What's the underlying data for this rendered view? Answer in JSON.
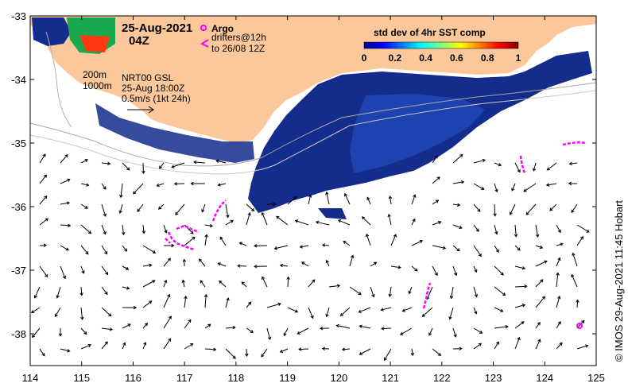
{
  "map": {
    "datetime": "25-Aug-2021",
    "time": "04Z",
    "product": "NRT00 GSL",
    "product_time": "25-Aug 18:00Z",
    "vector_scale": "0.5m/s (1kt 24h)",
    "contour_200": "200m",
    "contour_1000": "1000m",
    "credit": "©  IMOS 29-Aug-2021 11:45 Hobart"
  },
  "legend": {
    "argo": "Argo",
    "drifters_line1": "drifters@12h",
    "drifters_line2": "to 26/08 12Z"
  },
  "colorbar": {
    "title": "std dev of 4hr SST comp",
    "ticks": [
      "0",
      "0.2",
      "0.4",
      "0.6",
      "0.8",
      "1"
    ],
    "colors": [
      "#00008f",
      "#0000ff",
      "#0080ff",
      "#00ffff",
      "#80ff80",
      "#ffff00",
      "#ff8000",
      "#ff0000",
      "#800000"
    ]
  },
  "axes": {
    "x_ticks": [
      "114",
      "115",
      "116",
      "117",
      "118",
      "119",
      "120",
      "121",
      "122",
      "123",
      "124",
      "125"
    ],
    "y_ticks": [
      "-33",
      "-34",
      "-35",
      "-36",
      "-37",
      "-38"
    ],
    "xlim": [
      114,
      125
    ],
    "ylim": [
      -38.5,
      -33
    ]
  },
  "colors": {
    "land": "#fcc89b",
    "sst_dark": "#142c8c",
    "sst_mid": "#1e4ab8",
    "drifter": "#ff00ff"
  }
}
